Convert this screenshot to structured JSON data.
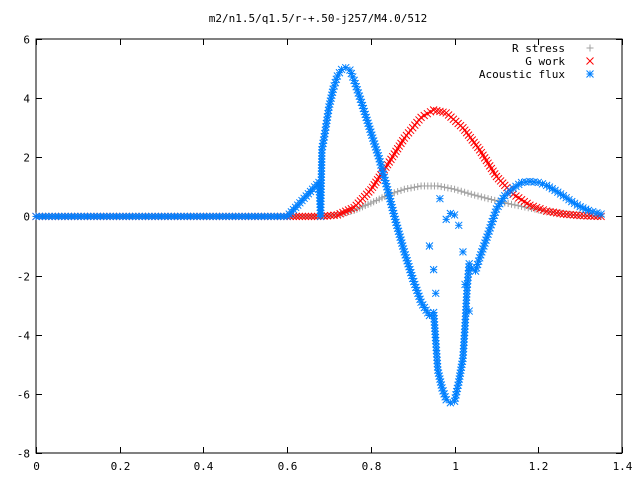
{
  "chart_data": {
    "type": "scatter",
    "title": "m2/n1.5/q1.5/r-+.50-j257/M4.0/512",
    "xlabel": "",
    "ylabel": "",
    "xlim": [
      0,
      1.4
    ],
    "ylim": [
      -8,
      6
    ],
    "grid": false,
    "legend_position": "top-right",
    "x_ticks": [
      0,
      0.2,
      0.4,
      0.6,
      0.8,
      1,
      1.2,
      1.4
    ],
    "x_tick_labels": [
      "0",
      "0.2",
      "0.4",
      "0.6",
      "0.8",
      "1",
      "1.2",
      "1.4"
    ],
    "y_ticks": [
      -8,
      -6,
      -4,
      -2,
      0,
      2,
      4,
      6
    ],
    "y_tick_labels": [
      "-8",
      "-6",
      "-4",
      "-2",
      "0",
      "2",
      "4",
      "6"
    ],
    "series": [
      {
        "name": "R stress",
        "marker": "+",
        "color": "#a0a0a0",
        "points": [
          [
            0,
            0
          ],
          [
            0.1,
            0
          ],
          [
            0.2,
            0
          ],
          [
            0.3,
            0
          ],
          [
            0.4,
            0
          ],
          [
            0.5,
            0
          ],
          [
            0.6,
            0
          ],
          [
            0.68,
            0
          ],
          [
            0.72,
            0.05
          ],
          [
            0.76,
            0.2
          ],
          [
            0.8,
            0.45
          ],
          [
            0.84,
            0.72
          ],
          [
            0.88,
            0.92
          ],
          [
            0.92,
            1.03
          ],
          [
            0.96,
            1.03
          ],
          [
            1.0,
            0.92
          ],
          [
            1.04,
            0.75
          ],
          [
            1.08,
            0.6
          ],
          [
            1.12,
            0.46
          ],
          [
            1.16,
            0.34
          ],
          [
            1.2,
            0.22
          ],
          [
            1.24,
            0.13
          ],
          [
            1.28,
            0.06
          ],
          [
            1.32,
            0.02
          ],
          [
            1.35,
            0.0
          ]
        ]
      },
      {
        "name": "G work",
        "marker": "x",
        "color": "#ff0000",
        "points": [
          [
            0,
            0
          ],
          [
            0.1,
            0
          ],
          [
            0.2,
            0
          ],
          [
            0.3,
            0
          ],
          [
            0.4,
            0
          ],
          [
            0.5,
            0
          ],
          [
            0.6,
            0
          ],
          [
            0.68,
            0
          ],
          [
            0.72,
            0.05
          ],
          [
            0.76,
            0.3
          ],
          [
            0.8,
            0.9
          ],
          [
            0.84,
            1.75
          ],
          [
            0.88,
            2.65
          ],
          [
            0.92,
            3.35
          ],
          [
            0.95,
            3.6
          ],
          [
            0.98,
            3.5
          ],
          [
            1.02,
            3.0
          ],
          [
            1.06,
            2.25
          ],
          [
            1.1,
            1.35
          ],
          [
            1.14,
            0.75
          ],
          [
            1.18,
            0.38
          ],
          [
            1.22,
            0.18
          ],
          [
            1.26,
            0.08
          ],
          [
            1.3,
            0.03
          ],
          [
            1.35,
            0.0
          ]
        ]
      },
      {
        "name": "Acoustic flux",
        "marker": "*",
        "color": "#0080ff",
        "points": [
          [
            0,
            0
          ],
          [
            0.1,
            0
          ],
          [
            0.2,
            0
          ],
          [
            0.3,
            0
          ],
          [
            0.4,
            0
          ],
          [
            0.5,
            0
          ],
          [
            0.6,
            0
          ],
          [
            0.68,
            0
          ],
          [
            0.676,
            1.15
          ],
          [
            0.683,
            2.25
          ],
          [
            0.69,
            2.8
          ],
          [
            0.7,
            3.7
          ],
          [
            0.71,
            4.3
          ],
          [
            0.72,
            4.75
          ],
          [
            0.73,
            4.97
          ],
          [
            0.74,
            5.03
          ],
          [
            0.75,
            4.95
          ],
          [
            0.76,
            4.6
          ],
          [
            0.78,
            3.75
          ],
          [
            0.8,
            2.85
          ],
          [
            0.82,
            1.95
          ],
          [
            0.84,
            0.9
          ],
          [
            0.86,
            -0.2
          ],
          [
            0.88,
            -1.2
          ],
          [
            0.9,
            -2.1
          ],
          [
            0.92,
            -2.9
          ],
          [
            0.94,
            -3.35
          ],
          [
            0.95,
            -3.25
          ],
          [
            0.955,
            -4.2
          ],
          [
            0.96,
            -5.2
          ],
          [
            0.97,
            -5.8
          ],
          [
            0.98,
            -6.2
          ],
          [
            0.99,
            -6.3
          ],
          [
            1.0,
            -6.25
          ],
          [
            1.01,
            -5.6
          ],
          [
            1.02,
            -4.8
          ],
          [
            1.025,
            -3.7
          ],
          [
            1.03,
            -2.4
          ],
          [
            1.035,
            -1.6
          ],
          [
            1.04,
            -1.75
          ],
          [
            1.05,
            -1.85
          ],
          [
            1.06,
            -1.4
          ],
          [
            1.08,
            -0.6
          ],
          [
            1.1,
            0.25
          ],
          [
            1.12,
            0.7
          ],
          [
            1.14,
            0.95
          ],
          [
            1.16,
            1.15
          ],
          [
            1.18,
            1.18
          ],
          [
            1.2,
            1.15
          ],
          [
            1.22,
            1.05
          ],
          [
            1.24,
            0.88
          ],
          [
            1.26,
            0.7
          ],
          [
            1.28,
            0.5
          ],
          [
            1.3,
            0.33
          ],
          [
            1.32,
            0.2
          ],
          [
            1.34,
            0.12
          ],
          [
            1.35,
            0.08
          ]
        ]
      },
      {
        "name": "",
        "marker": "*",
        "color": "#0080ff",
        "points": [
          [
            0.94,
            -1.0
          ],
          [
            0.95,
            -1.8
          ],
          [
            0.955,
            -2.6
          ],
          [
            0.965,
            0.6
          ],
          [
            0.98,
            -0.1
          ],
          [
            0.99,
            0.1
          ],
          [
            1.0,
            0.05
          ],
          [
            1.01,
            -0.3
          ],
          [
            1.02,
            -1.2
          ],
          [
            1.025,
            -2.3
          ],
          [
            1.035,
            -3.2
          ]
        ]
      }
    ]
  }
}
